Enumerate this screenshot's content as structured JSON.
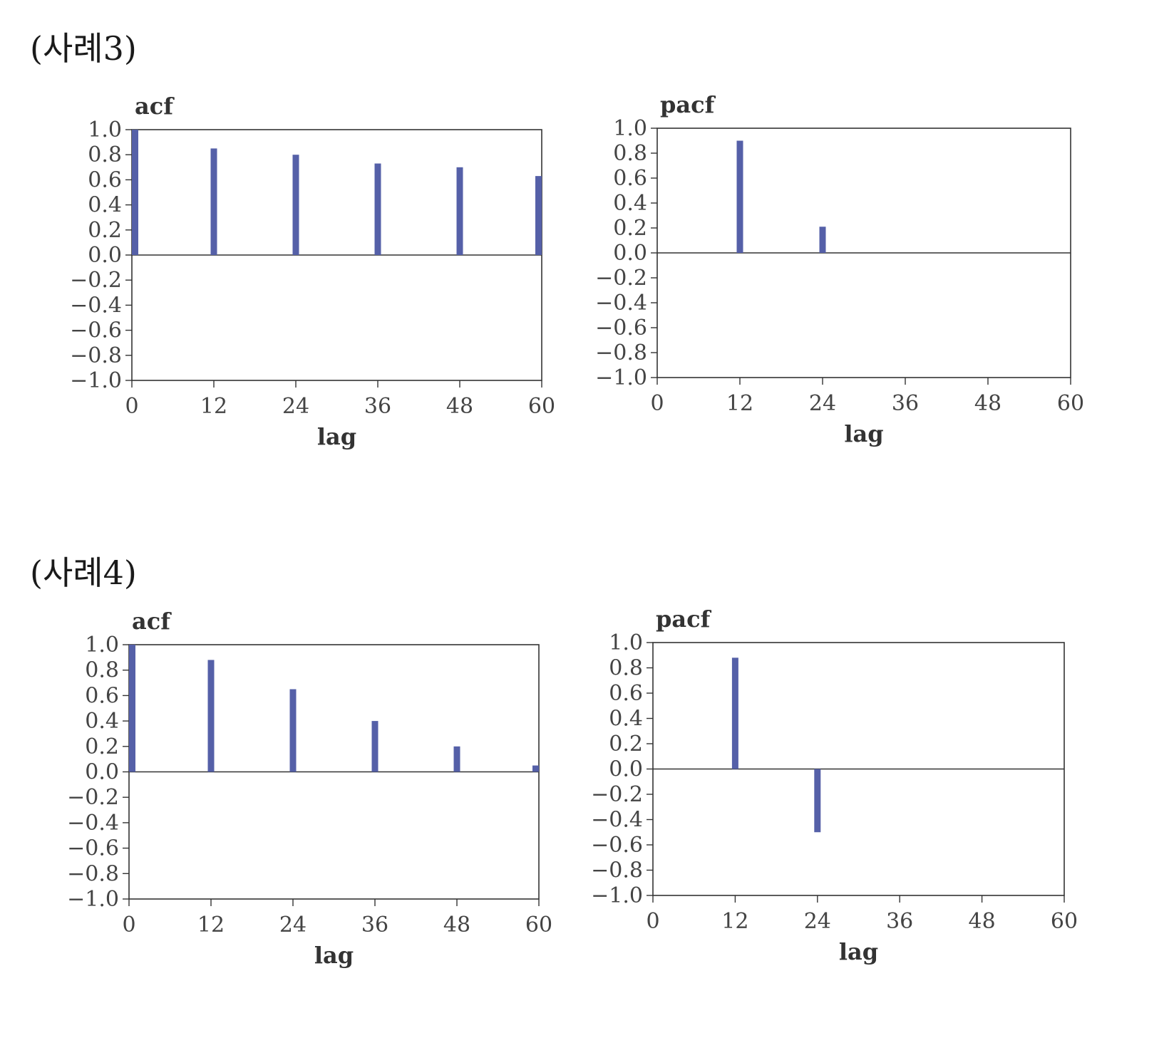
{
  "sections": [
    {
      "title": "(사례3)",
      "charts": [
        {
          "title": "acf",
          "xlabel": "lag"
        },
        {
          "title": "pacf",
          "xlabel": "lag"
        }
      ]
    },
    {
      "title": "(사례4)",
      "charts": [
        {
          "title": "acf",
          "xlabel": "lag"
        },
        {
          "title": "pacf",
          "xlabel": "lag"
        }
      ]
    }
  ],
  "colors": {
    "bar": "#5560a8",
    "axis": "#333333"
  },
  "chart_data": [
    {
      "type": "bar",
      "title": "acf",
      "xlabel": "lag",
      "ylabel": "",
      "x": [
        0,
        12,
        24,
        36,
        48,
        60
      ],
      "values": [
        1.0,
        0.85,
        0.8,
        0.73,
        0.7,
        0.63
      ],
      "xlim": [
        0,
        60
      ],
      "ylim": [
        -1.0,
        1.0
      ],
      "xticks": [
        "0",
        "12",
        "24",
        "36",
        "48",
        "60"
      ],
      "yticks": [
        "1.0",
        "0.8",
        "0.6",
        "0.4",
        "0.2",
        "0.0",
        "−0.2",
        "−0.4",
        "−0.6",
        "−0.8",
        "−1.0"
      ],
      "grid": false
    },
    {
      "type": "bar",
      "title": "pacf",
      "xlabel": "lag",
      "ylabel": "",
      "x": [
        12,
        24
      ],
      "values": [
        0.9,
        0.21
      ],
      "xlim": [
        0,
        60
      ],
      "ylim": [
        -1.0,
        1.0
      ],
      "xticks": [
        "0",
        "12",
        "24",
        "36",
        "48",
        "60"
      ],
      "yticks": [
        "1.0",
        "0.8",
        "0.6",
        "0.4",
        "0.2",
        "0.0",
        "−0.2",
        "−0.4",
        "−0.6",
        "−0.8",
        "−1.0"
      ],
      "grid": false
    },
    {
      "type": "bar",
      "title": "acf",
      "xlabel": "lag",
      "ylabel": "",
      "x": [
        0,
        12,
        24,
        36,
        48,
        60
      ],
      "values": [
        1.0,
        0.88,
        0.65,
        0.4,
        0.2,
        0.05
      ],
      "xlim": [
        0,
        60
      ],
      "ylim": [
        -1.0,
        1.0
      ],
      "xticks": [
        "0",
        "12",
        "24",
        "36",
        "48",
        "60"
      ],
      "yticks": [
        "1.0",
        "0.8",
        "0.6",
        "0.4",
        "0.2",
        "0.0",
        "−0.2",
        "−0.4",
        "−0.6",
        "−0.8",
        "−1.0"
      ],
      "grid": false
    },
    {
      "type": "bar",
      "title": "pacf",
      "xlabel": "lag",
      "ylabel": "",
      "x": [
        12,
        24
      ],
      "values": [
        0.88,
        -0.5
      ],
      "xlim": [
        0,
        60
      ],
      "ylim": [
        -1.0,
        1.0
      ],
      "xticks": [
        "0",
        "12",
        "24",
        "36",
        "48",
        "60"
      ],
      "yticks": [
        "1.0",
        "0.8",
        "0.6",
        "0.4",
        "0.2",
        "0.0",
        "−0.2",
        "−0.4",
        "−0.6",
        "−0.8",
        "−1.0"
      ],
      "grid": false
    }
  ]
}
